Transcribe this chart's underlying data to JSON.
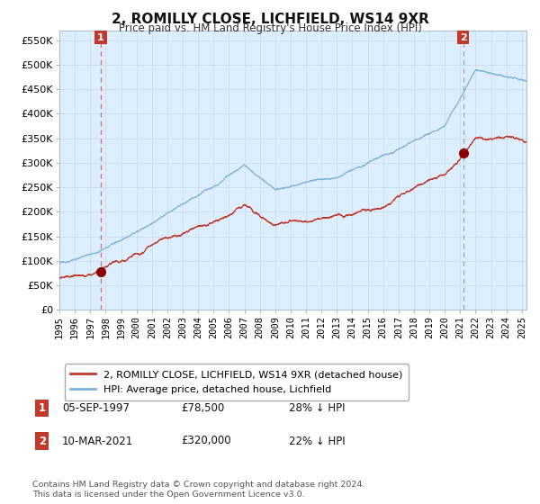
{
  "title": "2, ROMILLY CLOSE, LICHFIELD, WS14 9XR",
  "subtitle": "Price paid vs. HM Land Registry's House Price Index (HPI)",
  "legend_line1": "2, ROMILLY CLOSE, LICHFIELD, WS14 9XR (detached house)",
  "legend_line2": "HPI: Average price, detached house, Lichfield",
  "annotation1_label": "1",
  "annotation1_date": "05-SEP-1997",
  "annotation1_price": "£78,500",
  "annotation1_hpi": "28% ↓ HPI",
  "annotation2_label": "2",
  "annotation2_date": "10-MAR-2021",
  "annotation2_price": "£320,000",
  "annotation2_hpi": "22% ↓ HPI",
  "footer": "Contains HM Land Registry data © Crown copyright and database right 2024.\nThis data is licensed under the Open Government Licence v3.0.",
  "xlim_start": 1995.0,
  "xlim_end": 2025.3,
  "ylim_min": 0,
  "ylim_max": 570000,
  "sale1_x": 1997.68,
  "sale1_y": 78500,
  "sale2_x": 2021.19,
  "sale2_y": 320000,
  "hpi_color": "#7ab4d8",
  "price_color": "#c0392b",
  "sale_dot_color": "#8b0000",
  "vline1_color": "#e87070",
  "vline2_color": "#aaaaaa",
  "grid_color": "#ccddee",
  "bg_chart_color": "#ddeeff",
  "bg_fig_color": "#ffffff",
  "label_box_color": "#c0392b",
  "yticks": [
    0,
    50000,
    100000,
    150000,
    200000,
    250000,
    300000,
    350000,
    400000,
    450000,
    500000,
    550000
  ]
}
